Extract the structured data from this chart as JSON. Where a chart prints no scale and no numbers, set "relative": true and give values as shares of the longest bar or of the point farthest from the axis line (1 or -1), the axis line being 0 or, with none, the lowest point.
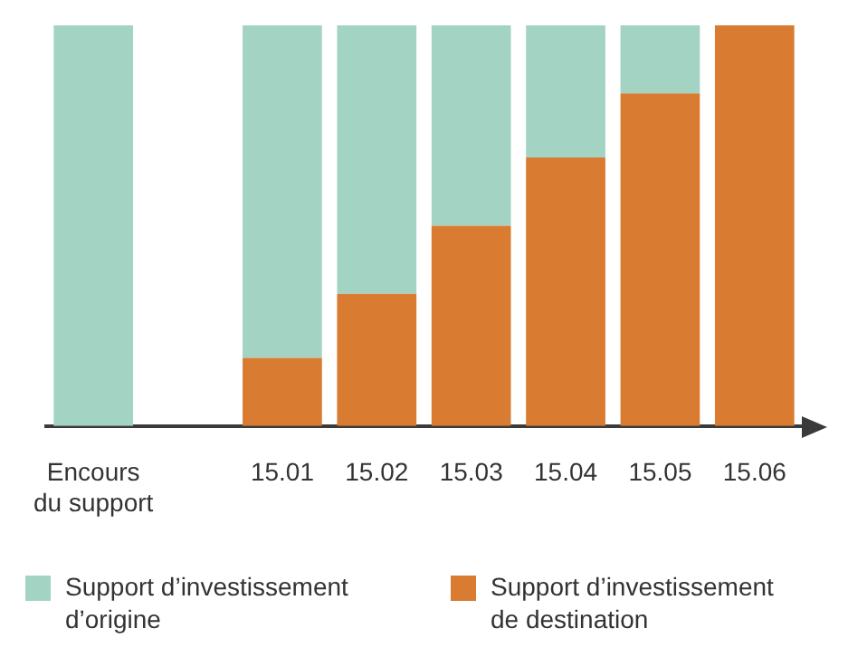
{
  "chart_data": {
    "type": "bar",
    "relative": true,
    "stacked": true,
    "grid": false,
    "legend": "bottom",
    "categories": [
      "Encours du support",
      null,
      "15.01",
      "15.02",
      "15.03",
      "15.04",
      "15.05",
      "15.06"
    ],
    "series": [
      {
        "name": "Support d’investissement de destination",
        "color": "#d97b30",
        "values": [
          null,
          null,
          0.17,
          0.33,
          0.5,
          0.67,
          0.83,
          1
        ]
      },
      {
        "name": "Support d’investissement d’origine",
        "color": "#a3d4c3",
        "values": [
          1,
          null,
          0.83,
          0.67,
          0.5,
          0.33,
          0.17,
          null
        ]
      }
    ]
  }
}
